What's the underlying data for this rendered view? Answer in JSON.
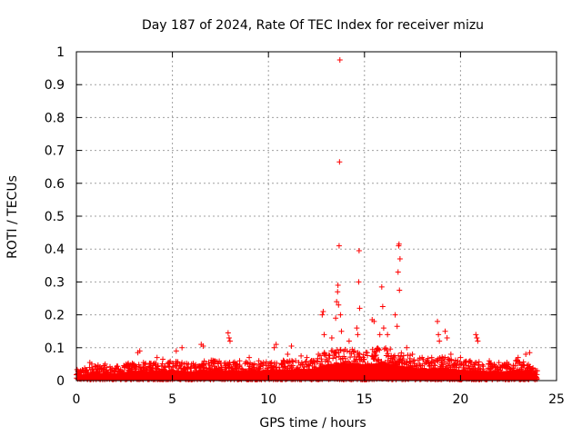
{
  "chart_data": {
    "type": "scatter",
    "title": "Day 187 of 2024, Rate Of TEC Index for receiver mizu",
    "xlabel": "GPS time / hours",
    "ylabel": "ROTI / TECUs",
    "xlim": [
      0,
      25
    ],
    "ylim": [
      0,
      1
    ],
    "xticks": [
      0,
      5,
      10,
      15,
      20,
      25
    ],
    "xtick_labels": [
      "0",
      "5",
      "10",
      "15",
      "20",
      "25"
    ],
    "yticks": [
      0,
      0.1,
      0.2,
      0.3,
      0.4,
      0.5,
      0.6,
      0.7,
      0.8,
      0.9,
      1
    ],
    "ytick_labels": [
      "0",
      "0.1",
      "0.2",
      "0.3",
      "0.4",
      "0.5",
      "0.6",
      "0.7",
      "0.8",
      "0.9",
      "1"
    ],
    "grid": true,
    "marker": "+",
    "color": "#ff0000",
    "series": [
      {
        "name": "ROTI",
        "points": [
          [
            0.1,
            0.018
          ],
          [
            0.5,
            0.03
          ],
          [
            0.7,
            0.055
          ],
          [
            0.8,
            0.05
          ],
          [
            1.5,
            0.05
          ],
          [
            2.0,
            0.03
          ],
          [
            2.5,
            0.04
          ],
          [
            3.2,
            0.085
          ],
          [
            3.3,
            0.09
          ],
          [
            4.0,
            0.05
          ],
          [
            4.2,
            0.07
          ],
          [
            4.5,
            0.065
          ],
          [
            5.2,
            0.09
          ],
          [
            5.5,
            0.1
          ],
          [
            6.0,
            0.05
          ],
          [
            6.5,
            0.11
          ],
          [
            6.6,
            0.105
          ],
          [
            7.2,
            0.06
          ],
          [
            7.9,
            0.145
          ],
          [
            7.95,
            0.13
          ],
          [
            8.0,
            0.12
          ],
          [
            8.5,
            0.06
          ],
          [
            9.0,
            0.07
          ],
          [
            9.5,
            0.06
          ],
          [
            10.3,
            0.1
          ],
          [
            10.4,
            0.11
          ],
          [
            11.0,
            0.08
          ],
          [
            11.2,
            0.105
          ],
          [
            11.7,
            0.075
          ],
          [
            12.0,
            0.07
          ],
          [
            12.6,
            0.08
          ],
          [
            12.8,
            0.2
          ],
          [
            12.85,
            0.21
          ],
          [
            12.9,
            0.14
          ],
          [
            13.3,
            0.13
          ],
          [
            13.5,
            0.19
          ],
          [
            13.55,
            0.24
          ],
          [
            13.6,
            0.27
          ],
          [
            13.62,
            0.29
          ],
          [
            13.65,
            0.23
          ],
          [
            13.68,
            0.41
          ],
          [
            13.7,
            0.665
          ],
          [
            13.72,
            0.975
          ],
          [
            13.75,
            0.2
          ],
          [
            13.8,
            0.15
          ],
          [
            14.2,
            0.12
          ],
          [
            14.6,
            0.16
          ],
          [
            14.65,
            0.14
          ],
          [
            14.7,
            0.3
          ],
          [
            14.72,
            0.395
          ],
          [
            14.75,
            0.22
          ],
          [
            15.4,
            0.185
          ],
          [
            15.5,
            0.18
          ],
          [
            15.8,
            0.14
          ],
          [
            15.9,
            0.285
          ],
          [
            15.95,
            0.225
          ],
          [
            16.0,
            0.16
          ],
          [
            16.2,
            0.14
          ],
          [
            16.6,
            0.2
          ],
          [
            16.7,
            0.165
          ],
          [
            16.75,
            0.33
          ],
          [
            16.78,
            0.41
          ],
          [
            16.8,
            0.415
          ],
          [
            16.82,
            0.275
          ],
          [
            16.85,
            0.37
          ],
          [
            17.2,
            0.1
          ],
          [
            17.5,
            0.08
          ],
          [
            18.0,
            0.07
          ],
          [
            18.5,
            0.07
          ],
          [
            18.8,
            0.18
          ],
          [
            18.85,
            0.14
          ],
          [
            18.9,
            0.12
          ],
          [
            19.2,
            0.15
          ],
          [
            19.3,
            0.13
          ],
          [
            19.5,
            0.08
          ],
          [
            20.0,
            0.07
          ],
          [
            20.5,
            0.06
          ],
          [
            20.8,
            0.14
          ],
          [
            20.85,
            0.13
          ],
          [
            20.9,
            0.12
          ],
          [
            21.5,
            0.06
          ],
          [
            22.0,
            0.055
          ],
          [
            22.5,
            0.05
          ],
          [
            23.0,
            0.07
          ],
          [
            23.4,
            0.08
          ],
          [
            23.6,
            0.085
          ],
          [
            24.0,
            0.03
          ]
        ]
      }
    ],
    "baseline_envelope": [
      [
        0.0,
        0.03
      ],
      [
        1.0,
        0.045
      ],
      [
        2.0,
        0.04
      ],
      [
        3.0,
        0.055
      ],
      [
        4.0,
        0.05
      ],
      [
        5.0,
        0.06
      ],
      [
        6.0,
        0.05
      ],
      [
        7.0,
        0.06
      ],
      [
        8.0,
        0.055
      ],
      [
        9.0,
        0.06
      ],
      [
        10.0,
        0.055
      ],
      [
        11.0,
        0.06
      ],
      [
        12.0,
        0.06
      ],
      [
        12.5,
        0.07
      ],
      [
        13.0,
        0.09
      ],
      [
        14.0,
        0.1
      ],
      [
        15.0,
        0.09
      ],
      [
        16.0,
        0.1
      ],
      [
        17.0,
        0.08
      ],
      [
        18.0,
        0.065
      ],
      [
        19.0,
        0.07
      ],
      [
        20.0,
        0.06
      ],
      [
        21.0,
        0.055
      ],
      [
        22.0,
        0.05
      ],
      [
        23.0,
        0.06
      ],
      [
        24.0,
        0.04
      ]
    ]
  }
}
